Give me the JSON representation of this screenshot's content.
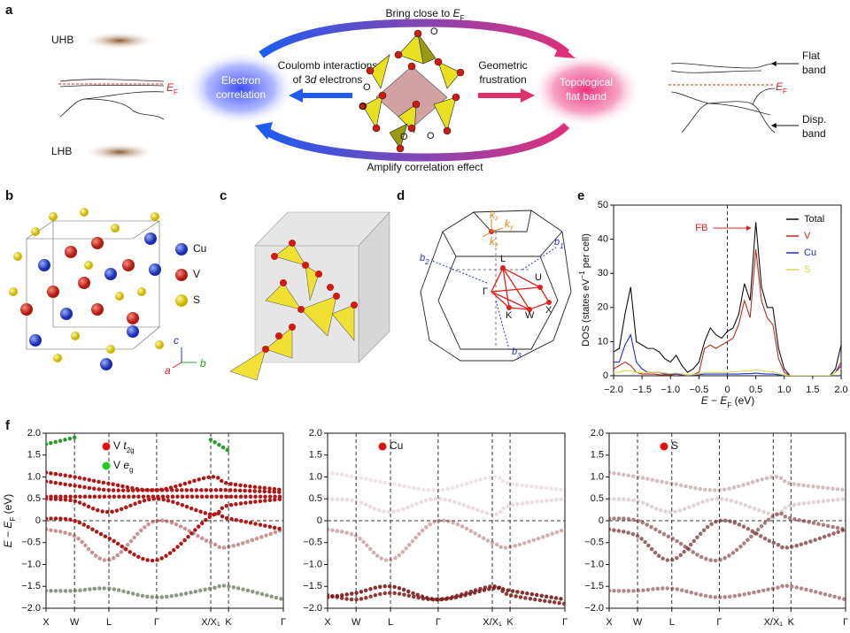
{
  "panel_labels": [
    "a",
    "b",
    "c",
    "d",
    "e",
    "f"
  ],
  "panel_a": {
    "uhb": "UHB",
    "lhb": "LHB",
    "ef_left": [
      "E",
      "F"
    ],
    "electron_correlation": [
      "Electron",
      "correlation"
    ],
    "topological_flat_band": [
      "Topological",
      "flat band"
    ],
    "bring_close": [
      "Bring close to ",
      "E",
      "F"
    ],
    "amplify": "Amplify correlation effect",
    "coulomb": [
      "Coulomb interactions",
      "of 3",
      "d",
      " electrons"
    ],
    "geometric": [
      "Geometric",
      "frustration"
    ],
    "oxygen": [
      "O",
      "O",
      "O",
      "O",
      "O"
    ],
    "flat_band": [
      "Flat",
      "band"
    ],
    "ef_right": [
      "E",
      "F"
    ],
    "disp_band": [
      "Disp.",
      "band"
    ]
  },
  "panel_b": {
    "legend": [
      "Cu",
      "V",
      "S"
    ],
    "axes": [
      "c",
      "a",
      "b"
    ]
  },
  "panel_d": {
    "b1": [
      "b",
      "1"
    ],
    "b2": [
      "b",
      "2"
    ],
    "b3": [
      "b",
      "3"
    ],
    "kz": [
      "k",
      "z"
    ],
    "ky": [
      "k",
      "y"
    ],
    "kx": [
      "k",
      "x"
    ],
    "points": [
      "L",
      "U",
      "Γ",
      "K",
      "W",
      "X"
    ]
  },
  "chart_data": [
    {
      "type": "line",
      "y_label": [
        "DOS (states eV",
        "−1",
        " per cell)"
      ],
      "x_label": [
        "E",
        " − ",
        "E",
        "F",
        " (eV)"
      ],
      "annotation": "FB",
      "legend": "upper right",
      "xlim": [
        -2,
        2
      ],
      "ylim": [
        0,
        50
      ],
      "xticks": [
        {
          "value": -2,
          "label": "−2.0"
        },
        {
          "value": -1.5,
          "label": "−1.5"
        },
        {
          "value": -1,
          "label": "−1.0"
        },
        {
          "value": -0.5,
          "label": "−0.5"
        },
        0,
        {
          "value": 0.5,
          "label": "0.5"
        },
        {
          "value": 1,
          "label": "1.0"
        },
        {
          "value": 1.5,
          "label": "1.5"
        },
        {
          "value": 2,
          "label": "2.0"
        }
      ],
      "yticks": [
        0,
        10,
        20,
        30,
        40,
        50
      ],
      "x": [
        -2,
        -1.9,
        -1.8,
        -1.7,
        -1.6,
        -1.5,
        -1.4,
        -1.3,
        -1.2,
        -1.1,
        -1,
        -0.9,
        -0.8,
        -0.7,
        -0.6,
        -0.5,
        -0.4,
        -0.3,
        -0.2,
        -0.1,
        0,
        0.1,
        0.2,
        0.3,
        0.4,
        0.5,
        0.6,
        0.7,
        0.8,
        0.9,
        1,
        1.1,
        1.2,
        1.3,
        1.4,
        1.5,
        1.6,
        1.7,
        1.8,
        1.9,
        2
      ],
      "series": [
        {
          "name": "Total",
          "color": "#111111",
          "values": [
            7,
            8,
            18,
            26,
            10,
            9,
            8,
            8,
            7,
            5,
            4,
            6,
            3,
            1,
            2,
            4,
            10,
            14,
            12,
            11,
            13,
            14,
            18,
            27,
            22,
            45,
            26,
            20,
            20,
            8,
            2,
            0,
            0,
            0,
            0,
            0,
            0,
            0,
            0,
            2,
            9
          ]
        },
        {
          "name": "V",
          "color": "#c0281e",
          "values": [
            2,
            3,
            4,
            3,
            1,
            0.5,
            0.5,
            0.5,
            0.3,
            0.2,
            0.2,
            0.5,
            0.2,
            0.1,
            0.3,
            1,
            8,
            9,
            8,
            9,
            10,
            11,
            15,
            22,
            17,
            37,
            22,
            17,
            15,
            5,
            1,
            0,
            0,
            0,
            0,
            0,
            0,
            0,
            0,
            1,
            4
          ]
        },
        {
          "name": "Cu",
          "color": "#1f2ee0",
          "values": [
            4,
            4,
            9,
            12,
            4,
            2,
            1,
            1,
            1,
            0.5,
            0.5,
            0.5,
            0.3,
            0.2,
            0.2,
            0.3,
            0.5,
            0.5,
            0.5,
            0.5,
            0.5,
            0.5,
            0.5,
            0.6,
            0.6,
            0.8,
            0.6,
            0.5,
            0.5,
            0.3,
            0.1,
            0,
            0,
            0,
            0,
            0,
            0,
            0,
            0,
            1,
            3
          ]
        },
        {
          "name": "S",
          "color": "#d8d84a",
          "values": [
            1,
            1,
            1.5,
            1.5,
            1,
            1,
            1,
            1,
            1,
            0.8,
            0.6,
            0.8,
            0.5,
            0.2,
            0.3,
            0.5,
            1,
            1,
            1,
            1,
            1,
            1.2,
            1.2,
            1.5,
            1.3,
            1.8,
            1.5,
            1.2,
            1.2,
            0.6,
            0.2,
            0,
            0,
            0,
            0,
            0,
            0,
            0,
            0,
            1,
            2
          ]
        }
      ]
    },
    {
      "type": "band",
      "y_label": [
        "E",
        " − ",
        "E",
        "F",
        " (eV)"
      ],
      "legend": [
        {
          "marker": "#e01010",
          "text": [
            "V ",
            "t",
            "2g"
          ]
        },
        {
          "marker": "#22cc22",
          "text": [
            "V ",
            "e",
            "g"
          ]
        }
      ],
      "xlim": [
        0,
        1
      ],
      "ylim": [
        -2,
        2
      ],
      "xticks": [
        {
          "value": 0,
          "label": "X"
        },
        {
          "value": 0.12,
          "label": "W"
        },
        {
          "value": 0.265,
          "label": "L"
        },
        {
          "value": 0.466,
          "label": "Γ"
        },
        {
          "value": 0.694,
          "label": "X/X₁"
        },
        {
          "value": 0.769,
          "label": "K"
        },
        {
          "value": 1,
          "label": "Γ"
        }
      ],
      "yticks": [
        {
          "value": 2,
          "label": "2.0"
        },
        {
          "value": 1.5,
          "label": "1.5"
        },
        {
          "value": 1,
          "label": "1.0"
        },
        {
          "value": 0.5,
          "label": "0.5"
        },
        0,
        {
          "value": -0.5,
          "label": "−0.5"
        },
        {
          "value": -1,
          "label": "−1.0"
        },
        {
          "value": -1.5,
          "label": "−1.5"
        },
        {
          "value": -2,
          "label": "−2.0"
        }
      ],
      "x": [
        0,
        0.12,
        0.265,
        0.466,
        0.694,
        0.769,
        1
      ],
      "series": [
        {
          "color": "#b01818",
          "values": [
            1.1,
            1.0,
            0.85,
            0.7,
            1.0,
            0.85,
            0.7
          ]
        },
        {
          "color": "#b01818",
          "values": [
            0.9,
            0.8,
            0.7,
            0.7,
            0.7,
            0.7,
            0.65
          ]
        },
        {
          "color": "#b01818",
          "values": [
            0.55,
            0.55,
            0.55,
            0.55,
            0.55,
            0.55,
            0.55
          ]
        },
        {
          "color": "#b01818",
          "values": [
            0.5,
            0.45,
            0.2,
            0.5,
            0.15,
            0.35,
            0.5
          ]
        },
        {
          "color": "#b01818",
          "values": [
            0.05,
            0,
            -0.4,
            -0.9,
            0.1,
            0.05,
            -0.2
          ]
        },
        {
          "color": "rgba(150,40,40,0.5)",
          "values": [
            -0.2,
            -0.35,
            -0.9,
            0,
            -0.5,
            -0.6,
            -0.2
          ]
        },
        {
          "color": "rgba(90,110,80,0.7)",
          "values": [
            -1.6,
            -1.6,
            -1.55,
            -1.75,
            -1.55,
            -1.5,
            -1.8
          ]
        },
        {
          "color": "#2a9a2a",
          "values": [
            1.75,
            1.9,
            null,
            null,
            1.85,
            1.6,
            null
          ]
        }
      ]
    },
    {
      "type": "band",
      "y_label": [
        "E",
        " − ",
        "E",
        "F",
        " (eV)"
      ],
      "legend": [
        {
          "marker": "#e01010",
          "text": [
            "Cu"
          ]
        }
      ],
      "xlim": [
        0,
        1
      ],
      "ylim": [
        -2,
        2
      ],
      "xticks": [
        {
          "value": 0,
          "label": "X"
        },
        {
          "value": 0.12,
          "label": "W"
        },
        {
          "value": 0.265,
          "label": "L"
        },
        {
          "value": 0.466,
          "label": "Γ"
        },
        {
          "value": 0.694,
          "label": "X/X₁"
        },
        {
          "value": 0.769,
          "label": "K"
        },
        {
          "value": 1,
          "label": "Γ"
        }
      ],
      "yticks": [
        {
          "value": 2,
          "label": "2.0"
        },
        {
          "value": 1.5,
          "label": "1.5"
        },
        {
          "value": 1,
          "label": "1.0"
        },
        {
          "value": 0.5,
          "label": "0.5"
        },
        0,
        {
          "value": -0.5,
          "label": "−0.5"
        },
        {
          "value": -1,
          "label": "−1.0"
        },
        {
          "value": -1.5,
          "label": "−1.5"
        },
        {
          "value": -2,
          "label": "−2.0"
        }
      ],
      "x": [
        0,
        0.12,
        0.265,
        0.466,
        0.694,
        0.769,
        1
      ],
      "series": [
        {
          "color": "rgba(120,25,25,0.9)",
          "values": [
            -1.75,
            -1.65,
            -1.5,
            -1.8,
            -1.55,
            -1.6,
            -1.8
          ]
        },
        {
          "color": "rgba(120,25,25,0.85)",
          "values": [
            -1.7,
            -1.8,
            -1.65,
            -1.8,
            -1.5,
            -1.7,
            -1.9
          ]
        },
        {
          "color": "rgba(120,25,25,0.35)",
          "values": [
            -0.2,
            -0.35,
            -0.9,
            0,
            -0.5,
            -0.6,
            -0.2
          ]
        },
        {
          "color": "rgba(120,25,25,0.15)",
          "values": [
            0.5,
            0.45,
            0.2,
            0.5,
            0.15,
            0.35,
            0.5
          ]
        },
        {
          "color": "rgba(120,25,25,0.12)",
          "values": [
            1.1,
            1.0,
            0.85,
            0.7,
            1.0,
            0.85,
            0.7
          ]
        }
      ]
    },
    {
      "type": "band",
      "y_label": [
        "E",
        " − ",
        "E",
        "F",
        " (eV)"
      ],
      "legend": [
        {
          "marker": "#e01010",
          "text": [
            "S"
          ]
        }
      ],
      "xlim": [
        0,
        1
      ],
      "ylim": [
        -2,
        2
      ],
      "xticks": [
        {
          "value": 0,
          "label": "X"
        },
        {
          "value": 0.12,
          "label": "W"
        },
        {
          "value": 0.265,
          "label": "L"
        },
        {
          "value": 0.466,
          "label": "Γ"
        },
        {
          "value": 0.694,
          "label": "X/X₁"
        },
        {
          "value": 0.769,
          "label": "K"
        },
        {
          "value": 1,
          "label": "Γ"
        }
      ],
      "yticks": [
        {
          "value": 2,
          "label": "2.0"
        },
        {
          "value": 1.5,
          "label": "1.5"
        },
        {
          "value": 1,
          "label": "1.0"
        },
        {
          "value": 0.5,
          "label": "0.5"
        },
        0,
        {
          "value": -0.5,
          "label": "−0.5"
        },
        {
          "value": -1,
          "label": "−1.0"
        },
        {
          "value": -1.5,
          "label": "−1.5"
        },
        {
          "value": -2,
          "label": "−2.0"
        }
      ],
      "x": [
        0,
        0.12,
        0.265,
        0.466,
        0.694,
        0.769,
        1
      ],
      "series": [
        {
          "color": "rgba(110,40,40,0.7)",
          "values": [
            -0.2,
            -0.35,
            -0.9,
            0,
            -0.5,
            -0.6,
            -0.2
          ]
        },
        {
          "color": "rgba(110,40,40,0.6)",
          "values": [
            0.05,
            0,
            -0.4,
            -0.9,
            0.1,
            0.05,
            -0.2
          ]
        },
        {
          "color": "rgba(110,40,40,0.55)",
          "values": [
            -1.6,
            -1.6,
            -1.55,
            -1.75,
            -1.55,
            -1.5,
            -1.8
          ]
        },
        {
          "color": "rgba(110,40,40,0.3)",
          "values": [
            1.1,
            1.0,
            0.85,
            0.7,
            1.0,
            0.85,
            0.7
          ]
        },
        {
          "color": "rgba(110,40,40,0.2)",
          "values": [
            0.5,
            0.45,
            0.2,
            0.5,
            0.15,
            0.35,
            0.5
          ]
        }
      ]
    }
  ]
}
